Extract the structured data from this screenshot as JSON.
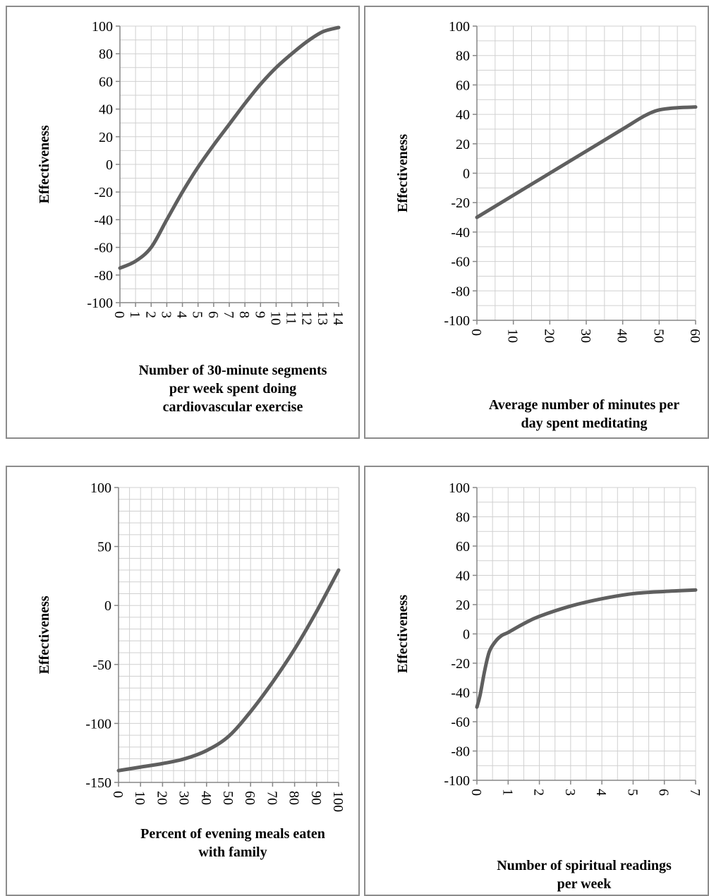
{
  "chart_data": [
    {
      "type": "line",
      "ylabel": "Effectiveness",
      "xlabel_lines": [
        "Number of 30-minute segments",
        "per week spent doing",
        "cardiovascular exercise"
      ],
      "xlim": [
        0,
        14
      ],
      "ylim": [
        -100,
        100
      ],
      "x_ticks": [
        0,
        1,
        2,
        3,
        4,
        5,
        6,
        7,
        8,
        9,
        10,
        11,
        12,
        13,
        14
      ],
      "y_ticks": [
        100,
        80,
        60,
        40,
        20,
        0,
        -20,
        -40,
        -60,
        -80,
        -100
      ],
      "x_minor": 1,
      "y_minor": 10,
      "series": [
        {
          "x": [
            0,
            1,
            2,
            3,
            4,
            5,
            6,
            7,
            8,
            9,
            10,
            11,
            12,
            13,
            14
          ],
          "y": [
            -75,
            -70,
            -60,
            -40,
            -20,
            -2,
            14,
            29,
            44,
            58,
            70,
            80,
            89,
            96,
            99
          ]
        }
      ]
    },
    {
      "type": "line",
      "ylabel": "Effectiveness",
      "xlabel_lines": [
        "Average number of minutes per",
        "day spent meditating"
      ],
      "xlim": [
        0,
        60
      ],
      "ylim": [
        -100,
        100
      ],
      "x_ticks": [
        0,
        10,
        20,
        30,
        40,
        50,
        60
      ],
      "y_ticks": [
        100,
        80,
        60,
        40,
        20,
        0,
        -20,
        -40,
        -60,
        -80,
        -100
      ],
      "x_minor": 5,
      "y_minor": 10,
      "series": [
        {
          "x": [
            0,
            10,
            20,
            30,
            40,
            46,
            50,
            55,
            60
          ],
          "y": [
            -30,
            -15,
            0,
            15,
            30,
            39,
            43,
            44.5,
            45
          ]
        }
      ]
    },
    {
      "type": "line",
      "ylabel": "Effectiveness",
      "xlabel_lines": [
        "Percent of evening meals eaten",
        "with family"
      ],
      "xlim": [
        0,
        100
      ],
      "ylim": [
        -150,
        100
      ],
      "x_ticks": [
        0,
        10,
        20,
        30,
        40,
        50,
        60,
        70,
        80,
        90,
        100
      ],
      "y_ticks": [
        100,
        50,
        0,
        -50,
        -100,
        -150
      ],
      "x_minor": 5,
      "y_minor": 10,
      "series": [
        {
          "x": [
            0,
            10,
            20,
            30,
            40,
            50,
            60,
            70,
            80,
            90,
            100
          ],
          "y": [
            -140,
            -137,
            -134,
            -130,
            -123,
            -111,
            -90,
            -65,
            -37,
            -5,
            30
          ]
        }
      ]
    },
    {
      "type": "line",
      "ylabel": "Effectiveness",
      "xlabel_lines": [
        "Number of spiritual readings",
        "per week"
      ],
      "xlim": [
        0,
        7
      ],
      "ylim": [
        -100,
        100
      ],
      "x_ticks": [
        0,
        1,
        2,
        3,
        4,
        5,
        6,
        7
      ],
      "y_ticks": [
        100,
        80,
        60,
        40,
        20,
        0,
        -20,
        -40,
        -60,
        -80,
        -100
      ],
      "x_minor": 0.5,
      "y_minor": 10,
      "series": [
        {
          "x": [
            0,
            0.1,
            0.25,
            0.4,
            0.6,
            0.8,
            1,
            1.5,
            2,
            3,
            4,
            5,
            6,
            7
          ],
          "y": [
            -50,
            -42,
            -25,
            -12,
            -5,
            -1,
            1,
            7,
            12,
            19,
            24,
            27.5,
            29,
            30
          ]
        }
      ]
    }
  ]
}
